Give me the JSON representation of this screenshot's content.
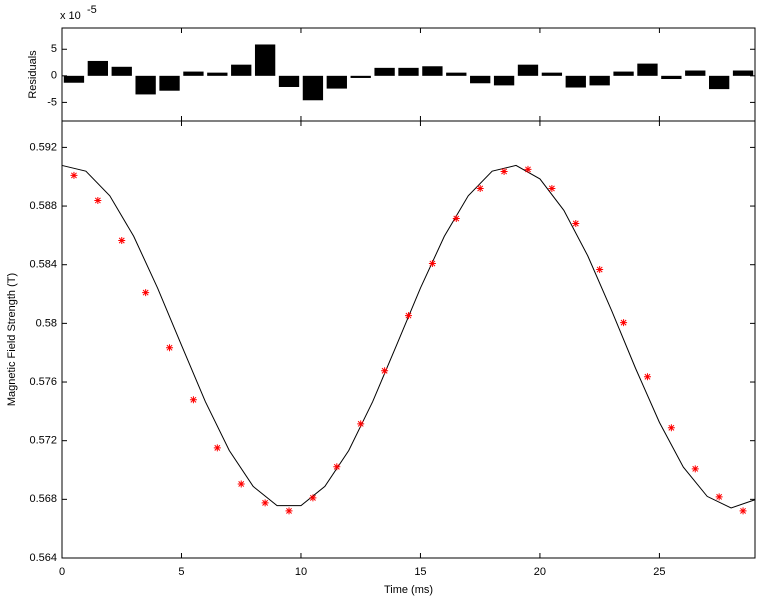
{
  "chart_data": [
    {
      "type": "bar",
      "ylabel": "Residuals",
      "exponent_label": {
        "base": "x 10",
        "exponent": "-5"
      },
      "x": [
        0.5,
        1.5,
        2.5,
        3.5,
        4.5,
        5.5,
        6.5,
        7.5,
        8.5,
        9.5,
        10.5,
        11.5,
        12.5,
        13.5,
        14.5,
        15.5,
        16.5,
        17.5,
        18.5,
        19.5,
        20.5,
        21.5,
        22.5,
        23.5,
        24.5,
        25.5,
        26.5,
        27.5,
        28.5
      ],
      "values": [
        -1.3,
        2.8,
        1.7,
        -3.5,
        -2.8,
        0.8,
        0.6,
        2.1,
        5.9,
        -2.1,
        -4.6,
        -2.4,
        -0.4,
        1.5,
        1.5,
        1.8,
        0.6,
        -1.4,
        -1.8,
        2.1,
        0.6,
        -2.2,
        -1.8,
        0.8,
        2.3,
        -0.6,
        1.0,
        -2.5,
        1.0
      ],
      "color": "#000000",
      "xlim": [
        0,
        29
      ],
      "xticks": [
        0,
        5,
        10,
        15,
        20,
        25
      ],
      "ylim": [
        -8.5,
        9
      ],
      "yticks": [
        -5,
        0,
        5
      ]
    },
    {
      "type": "scatter",
      "xlabel": "Time (ms)",
      "ylabel": "Magnetic Field Strength (T)",
      "xlim": [
        0,
        29
      ],
      "xticks": [
        0,
        5,
        10,
        15,
        20,
        25
      ],
      "ylim": [
        0.564,
        0.5938
      ],
      "yticks": [
        0.564,
        0.568,
        0.572,
        0.576,
        0.58,
        0.584,
        0.588,
        0.592
      ],
      "series": [
        {
          "kind": "line",
          "color": "#000000",
          "x": [
            0,
            1,
            2,
            3,
            4,
            5,
            6,
            7,
            8,
            9,
            10,
            11,
            12,
            13,
            14,
            15,
            16,
            17,
            18,
            19,
            20,
            21,
            22,
            23,
            24,
            25,
            26,
            27,
            28,
            29
          ],
          "values": [
            0.59077,
            0.59038,
            0.5887,
            0.58594,
            0.58241,
            0.57851,
            0.57466,
            0.57133,
            0.56888,
            0.56757,
            0.56757,
            0.56888,
            0.57133,
            0.57466,
            0.57851,
            0.58241,
            0.58594,
            0.5887,
            0.59038,
            0.59077,
            0.58985,
            0.58771,
            0.58461,
            0.58087,
            0.57694,
            0.57325,
            0.5702,
            0.5682,
            0.56741,
            0.56797
          ]
        },
        {
          "kind": "marker",
          "color": "#ff0000",
          "x": [
            0.5,
            1.5,
            2.5,
            3.5,
            4.5,
            5.5,
            6.5,
            7.5,
            8.5,
            9.5,
            10.5,
            11.5,
            12.5,
            13.5,
            14.5,
            15.5,
            16.5,
            17.5,
            18.5,
            19.5,
            20.5,
            21.5,
            22.5,
            23.5,
            24.5,
            25.5,
            26.5,
            27.5,
            28.5
          ],
          "values": [
            0.59009,
            0.58838,
            0.58565,
            0.5821,
            0.57834,
            0.57479,
            0.57151,
            0.56905,
            0.56776,
            0.56721,
            0.5681,
            0.57022,
            0.57315,
            0.57677,
            0.58053,
            0.58408,
            0.58715,
            0.5892,
            0.59036,
            0.5905,
            0.5892,
            0.58681,
            0.58367,
            0.58005,
            0.57636,
            0.57288,
            0.57008,
            0.56817,
            0.56721
          ]
        }
      ]
    }
  ]
}
